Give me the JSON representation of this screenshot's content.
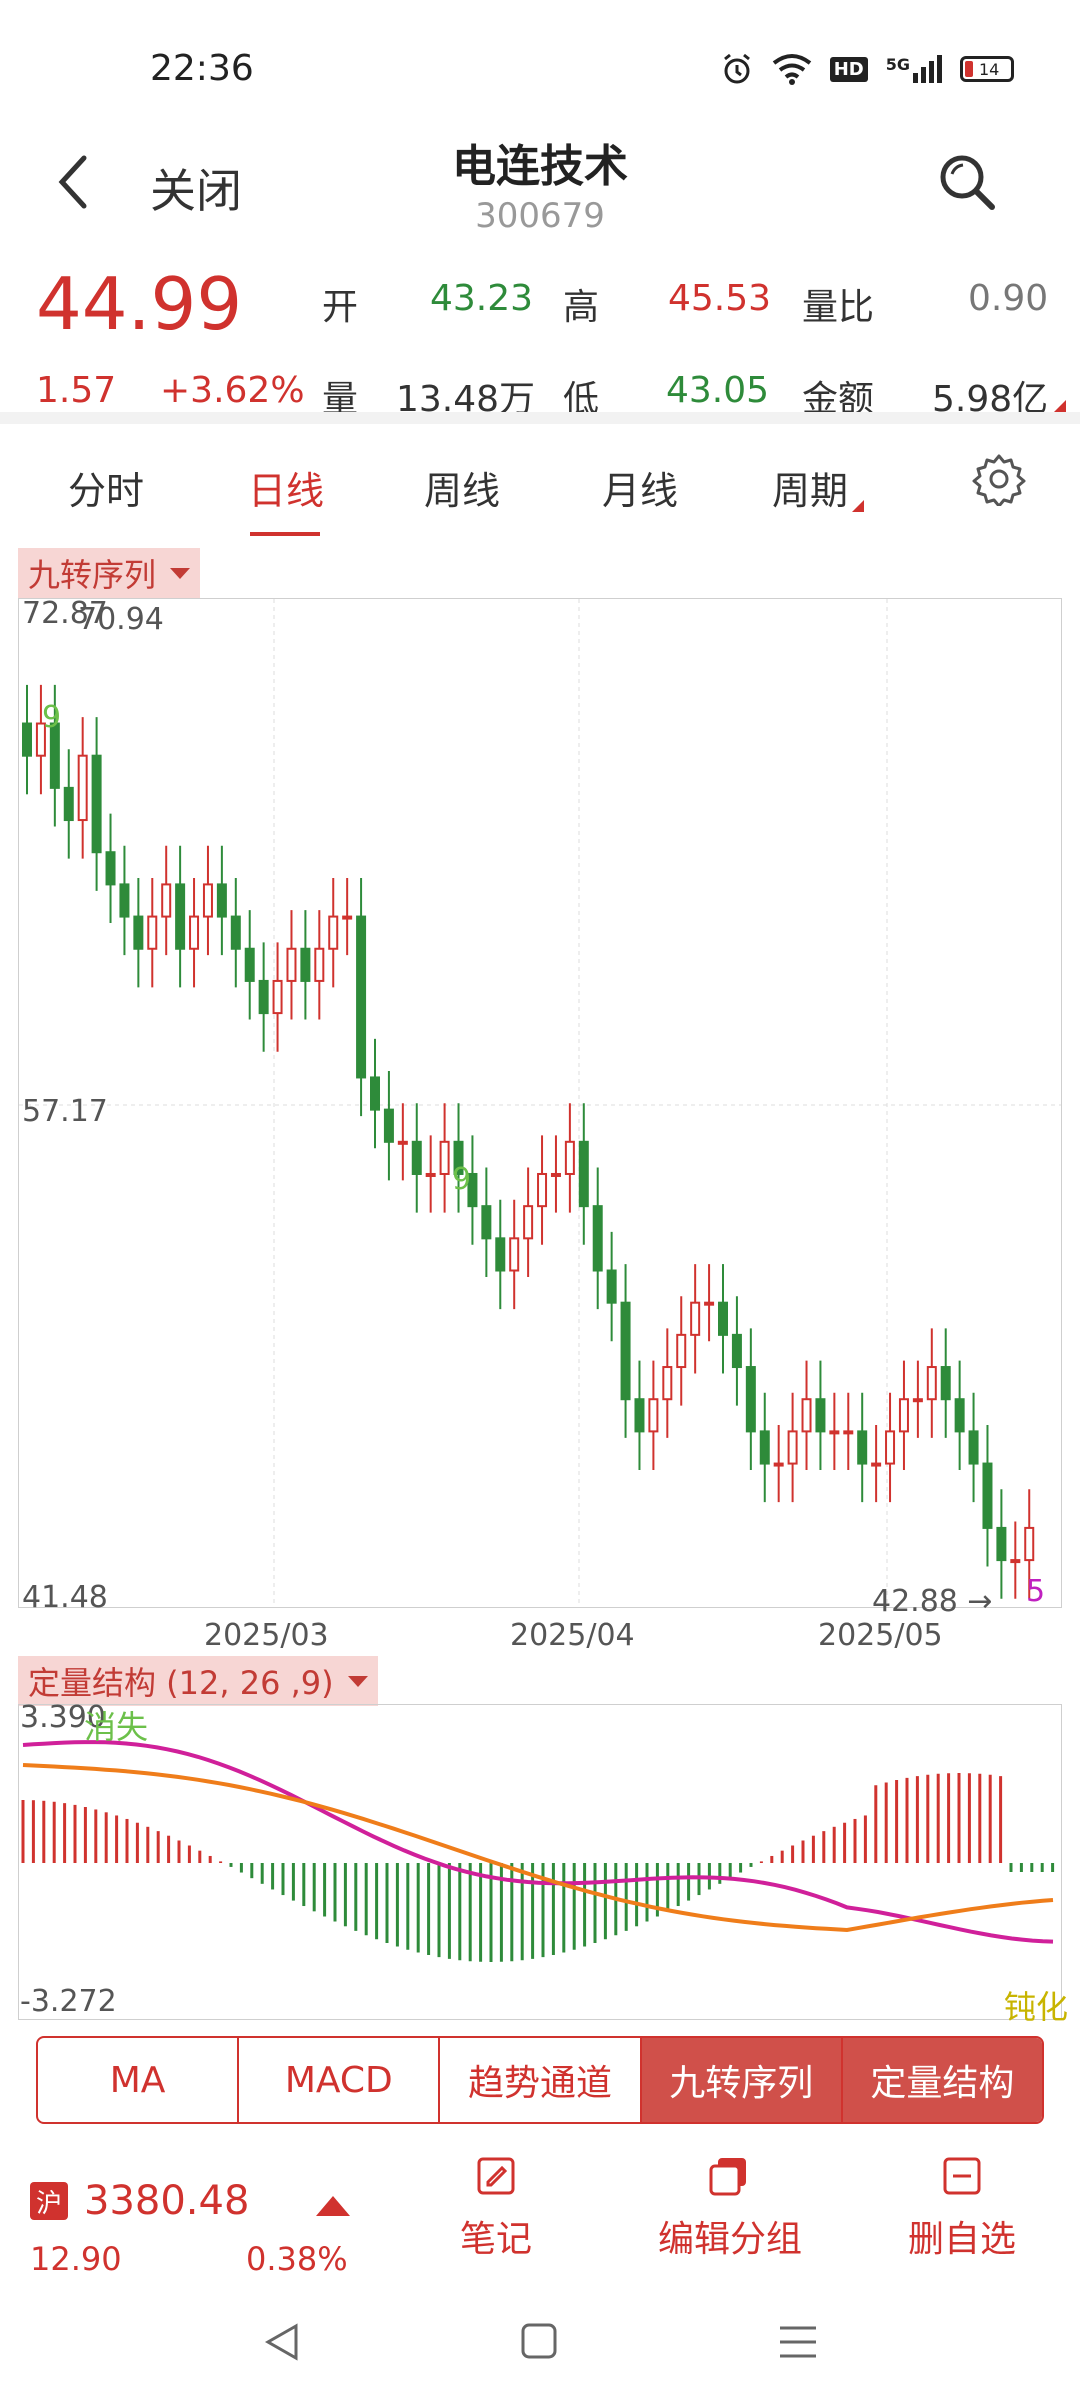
{
  "status": {
    "time": "22:36",
    "network": "5G",
    "battery": "14"
  },
  "header": {
    "back_label": "关闭",
    "stock_name": "电连技术",
    "stock_code": "300679"
  },
  "quote": {
    "price": "44.99",
    "change": "1.57",
    "change_pct": "+3.62%",
    "open_label": "开",
    "open": "43.23",
    "high_label": "高",
    "high": "45.53",
    "ratio_label": "量比",
    "ratio": "0.90",
    "volume_label": "量",
    "volume": "13.48万",
    "low_label": "低",
    "low": "43.05",
    "amount_label": "金额",
    "amount": "5.98亿"
  },
  "tabs": [
    {
      "label": "分时"
    },
    {
      "label": "日线"
    },
    {
      "label": "周线"
    },
    {
      "label": "月线"
    },
    {
      "label": "周期"
    }
  ],
  "main_chart": {
    "indicator_label": "九转序列",
    "top_price": "72.87",
    "high_marker": "70.94",
    "mid_price": "57.17",
    "bottom_price": "41.48",
    "low_marker": "42.88 →",
    "seq_count_a": "9",
    "seq_count_b": "9",
    "seq_count_c": "5",
    "dates": [
      "2025/03",
      "2025/04",
      "2025/05"
    ]
  },
  "sub_chart": {
    "indicator_label": "定量结构 (12, 26 ,9)",
    "top_value": "3.390",
    "bottom_value": "-3.272",
    "tag_left": "消失",
    "tag_right": "钝化"
  },
  "indicator_buttons": [
    "MA",
    "MACD",
    "趋势通道",
    "九转序列",
    "定量结构"
  ],
  "bottom_bar": {
    "index_label": "沪",
    "index_value": "3380.48",
    "index_change": "12.90",
    "index_pct": "0.38%",
    "note_label": "笔记",
    "edit_group_label": "编辑分组",
    "remove_label": "删自选"
  },
  "colors": {
    "up": "#d0322e",
    "down": "#2e8b3a",
    "accent": "#d0504a"
  }
}
